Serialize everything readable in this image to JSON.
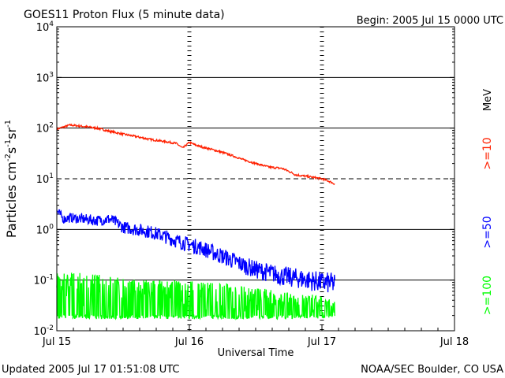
{
  "header": {
    "title": "GOES11 Proton Flux (5 minute data)",
    "begin": "Begin: 2005 Jul 15 0000 UTC"
  },
  "footer": {
    "updated": "Updated 2005 Jul 17 01:51:08 UTC",
    "credit": "NOAA/SEC Boulder, CO USA"
  },
  "chart_data": {
    "type": "line",
    "title": "GOES11 Proton Flux (5 minute data)",
    "xlabel": "Universal Time",
    "ylabel_parts": [
      "Particles cm",
      "-2",
      "s",
      "-1",
      "sr",
      "-1"
    ],
    "x_ticks": [
      "Jul 15",
      "Jul 16",
      "Jul 17",
      "Jul 18"
    ],
    "x_unit": "days since Jul 15 0000 UTC",
    "xlim": [
      0,
      3
    ],
    "yscale": "log",
    "ylim": [
      0.01,
      10000
    ],
    "y_ticks": [
      {
        "base": "10",
        "exp": "4"
      },
      {
        "base": "10",
        "exp": "3"
      },
      {
        "base": "10",
        "exp": "2"
      },
      {
        "base": "10",
        "exp": "1"
      },
      {
        "base": "10",
        "exp": "0"
      },
      {
        "base": "10",
        "exp": "-1"
      },
      {
        "base": "10",
        "exp": "-2"
      }
    ],
    "threshold": 10,
    "right_unit": "MeV",
    "series": [
      {
        "name": ">=10",
        "color": "#ff2000",
        "x": [
          0.0,
          0.1,
          0.2,
          0.3,
          0.4,
          0.5,
          0.6,
          0.7,
          0.8,
          0.9,
          0.95,
          1.0,
          1.05,
          1.1,
          1.2,
          1.3,
          1.4,
          1.5,
          1.6,
          1.7,
          1.8,
          1.9,
          2.0,
          2.05,
          2.1
        ],
        "y": [
          95,
          115,
          108,
          100,
          86,
          76,
          68,
          60,
          55,
          50,
          40,
          52,
          46,
          42,
          36,
          30,
          24,
          20,
          17,
          16,
          12,
          11,
          10,
          9,
          7.8
        ]
      },
      {
        "name": ">=50",
        "color": "#0000ff",
        "x": [
          0.0,
          0.05,
          0.1,
          0.2,
          0.3,
          0.4,
          0.5,
          0.6,
          0.7,
          0.8,
          0.9,
          1.0,
          1.1,
          1.2,
          1.3,
          1.4,
          1.5,
          1.6,
          1.7,
          1.8,
          1.9,
          2.0,
          2.1
        ],
        "y": [
          2.3,
          1.6,
          1.7,
          1.6,
          1.5,
          1.6,
          1.1,
          1.0,
          0.9,
          0.75,
          0.6,
          0.5,
          0.42,
          0.33,
          0.26,
          0.2,
          0.16,
          0.14,
          0.12,
          0.11,
          0.1,
          0.09,
          0.085
        ]
      },
      {
        "name": ">=100",
        "color": "#00ff00",
        "x": [
          0.0,
          0.3,
          0.6,
          0.9,
          1.2,
          1.5,
          1.8,
          2.1
        ],
        "y_low": [
          0.017,
          0.017,
          0.017,
          0.017,
          0.017,
          0.017,
          0.017,
          0.017
        ],
        "y_high": [
          0.15,
          0.13,
          0.1,
          0.1,
          0.09,
          0.07,
          0.06,
          0.04
        ]
      }
    ]
  }
}
